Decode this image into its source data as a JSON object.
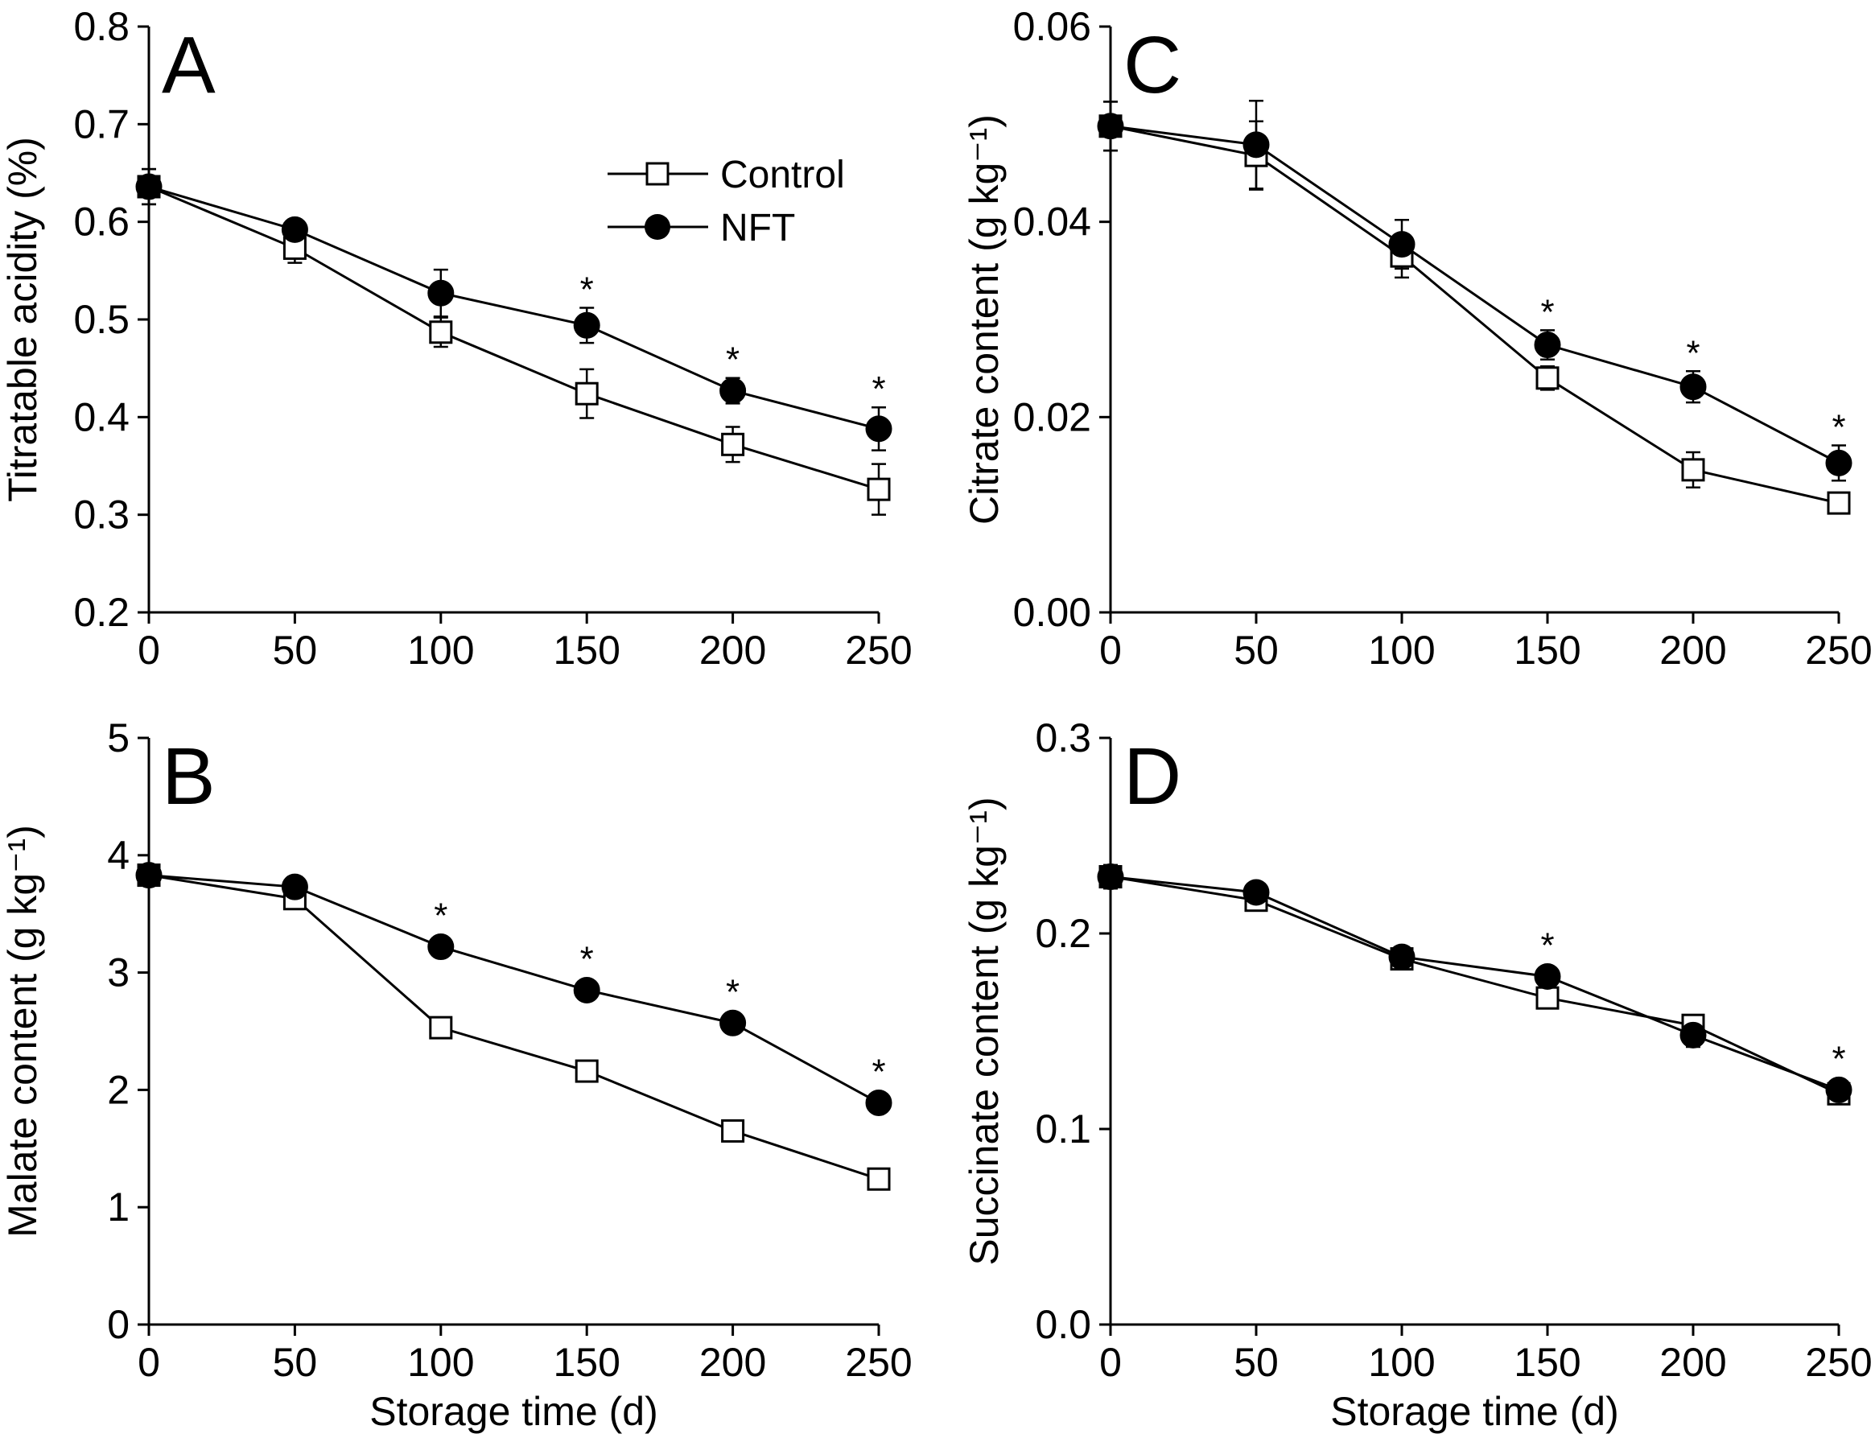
{
  "figure": {
    "legend": {
      "series": [
        "Control",
        "NFT"
      ]
    }
  },
  "chart_data": [
    {
      "type": "line",
      "panel": "A",
      "title": "",
      "xlabel": "",
      "ylabel": "Titratable acidity (%)",
      "xlim": [
        0,
        250
      ],
      "ylim": [
        0.2,
        0.8
      ],
      "xticks": [
        0,
        50,
        100,
        150,
        200,
        250
      ],
      "xtick_labels": [
        "0",
        "50",
        "100",
        "150",
        "200",
        "250"
      ],
      "yticks": [
        0.2,
        0.3,
        0.4,
        0.5,
        0.6,
        0.7,
        0.8
      ],
      "ytick_labels": [
        "0.2",
        "0.3",
        "0.4",
        "0.5",
        "0.6",
        "0.7",
        "0.8"
      ],
      "x": [
        0,
        50,
        100,
        150,
        200,
        250
      ],
      "series": [
        {
          "name": "Control",
          "marker": "open-square",
          "values": [
            0.636,
            0.573,
            0.487,
            0.424,
            0.372,
            0.326
          ],
          "errors": [
            0.018,
            0.015,
            0.015,
            0.025,
            0.018,
            0.026
          ]
        },
        {
          "name": "NFT",
          "marker": "filled-circle",
          "values": [
            0.636,
            0.592,
            0.527,
            0.494,
            0.427,
            0.388
          ],
          "errors": [
            0.018,
            0.01,
            0.024,
            0.018,
            0.013,
            0.022
          ]
        }
      ],
      "significance": {
        "symbol": "*",
        "x": [
          150,
          200,
          250
        ]
      },
      "legend_position": "top-center"
    },
    {
      "type": "line",
      "panel": "B",
      "title": "",
      "xlabel": "Storage time (d)",
      "ylabel": "Malate content (g kg⁻¹)",
      "xlim": [
        0,
        250
      ],
      "ylim": [
        0,
        5
      ],
      "xticks": [
        0,
        50,
        100,
        150,
        200,
        250
      ],
      "xtick_labels": [
        "0",
        "50",
        "100",
        "150",
        "200",
        "250"
      ],
      "yticks": [
        0,
        1,
        2,
        3,
        4,
        5
      ],
      "ytick_labels": [
        "0",
        "1",
        "2",
        "3",
        "4",
        "5"
      ],
      "x": [
        0,
        50,
        100,
        150,
        200,
        250
      ],
      "series": [
        {
          "name": "Control",
          "marker": "open-square",
          "values": [
            3.83,
            3.63,
            2.53,
            2.16,
            1.65,
            1.24
          ],
          "errors": [
            0.06,
            0.05,
            0.07,
            0.08,
            0.05,
            0.06
          ]
        },
        {
          "name": "NFT",
          "marker": "filled-circle",
          "values": [
            3.83,
            3.73,
            3.22,
            2.85,
            2.57,
            1.89
          ],
          "errors": [
            0.06,
            0.05,
            0.05,
            0.05,
            0.06,
            0.05
          ]
        }
      ],
      "significance": {
        "symbol": "*",
        "x": [
          100,
          150,
          200,
          250
        ]
      }
    },
    {
      "type": "line",
      "panel": "C",
      "title": "",
      "xlabel": "",
      "ylabel": "Citrate content (g kg⁻¹)",
      "xlim": [
        0,
        250
      ],
      "ylim": [
        0,
        0.06
      ],
      "xticks": [
        0,
        50,
        100,
        150,
        200,
        250
      ],
      "xtick_labels": [
        "0",
        "50",
        "100",
        "150",
        "200",
        "250"
      ],
      "yticks": [
        0,
        0.02,
        0.04,
        0.06
      ],
      "ytick_labels": [
        "0.00",
        "0.02",
        "0.04",
        "0.06"
      ],
      "x": [
        0,
        50,
        100,
        150,
        200,
        250
      ],
      "series": [
        {
          "name": "Control",
          "marker": "open-square",
          "values": [
            0.0498,
            0.0468,
            0.0365,
            0.024,
            0.0146,
            0.0112
          ],
          "errors": [
            0.0025,
            0.0035,
            0.0022,
            0.0012,
            0.0018,
            0.0009
          ]
        },
        {
          "name": "NFT",
          "marker": "filled-circle",
          "values": [
            0.0498,
            0.0479,
            0.0377,
            0.0274,
            0.0231,
            0.0153
          ],
          "errors": [
            0.0025,
            0.0045,
            0.0025,
            0.0015,
            0.0016,
            0.0018
          ]
        }
      ],
      "significance": {
        "symbol": "*",
        "x": [
          150,
          200,
          250
        ]
      }
    },
    {
      "type": "line",
      "panel": "D",
      "title": "",
      "xlabel": "Storage time (d)",
      "ylabel": "Succinate content (g kg⁻¹)",
      "xlim": [
        0,
        250
      ],
      "ylim": [
        0,
        0.3
      ],
      "xticks": [
        0,
        50,
        100,
        150,
        200,
        250
      ],
      "xtick_labels": [
        "0",
        "50",
        "100",
        "150",
        "200",
        "250"
      ],
      "yticks": [
        0,
        0.1,
        0.2,
        0.3
      ],
      "ytick_labels": [
        "0.0",
        "0.1",
        "0.2",
        "0.3"
      ],
      "x": [
        0,
        50,
        100,
        150,
        200,
        250
      ],
      "series": [
        {
          "name": "Control",
          "marker": "open-square",
          "values": [
            0.229,
            0.217,
            0.187,
            0.167,
            0.153,
            0.118
          ],
          "errors": [
            0.006,
            0.005,
            0.004,
            0.004,
            0.004,
            0.004
          ]
        },
        {
          "name": "NFT",
          "marker": "filled-circle",
          "values": [
            0.229,
            0.221,
            0.188,
            0.178,
            0.148,
            0.12
          ],
          "errors": [
            0.006,
            0.004,
            0.004,
            0.005,
            0.006,
            0.004
          ]
        }
      ],
      "significance": {
        "symbol": "*",
        "x": [
          150,
          250
        ]
      }
    }
  ]
}
